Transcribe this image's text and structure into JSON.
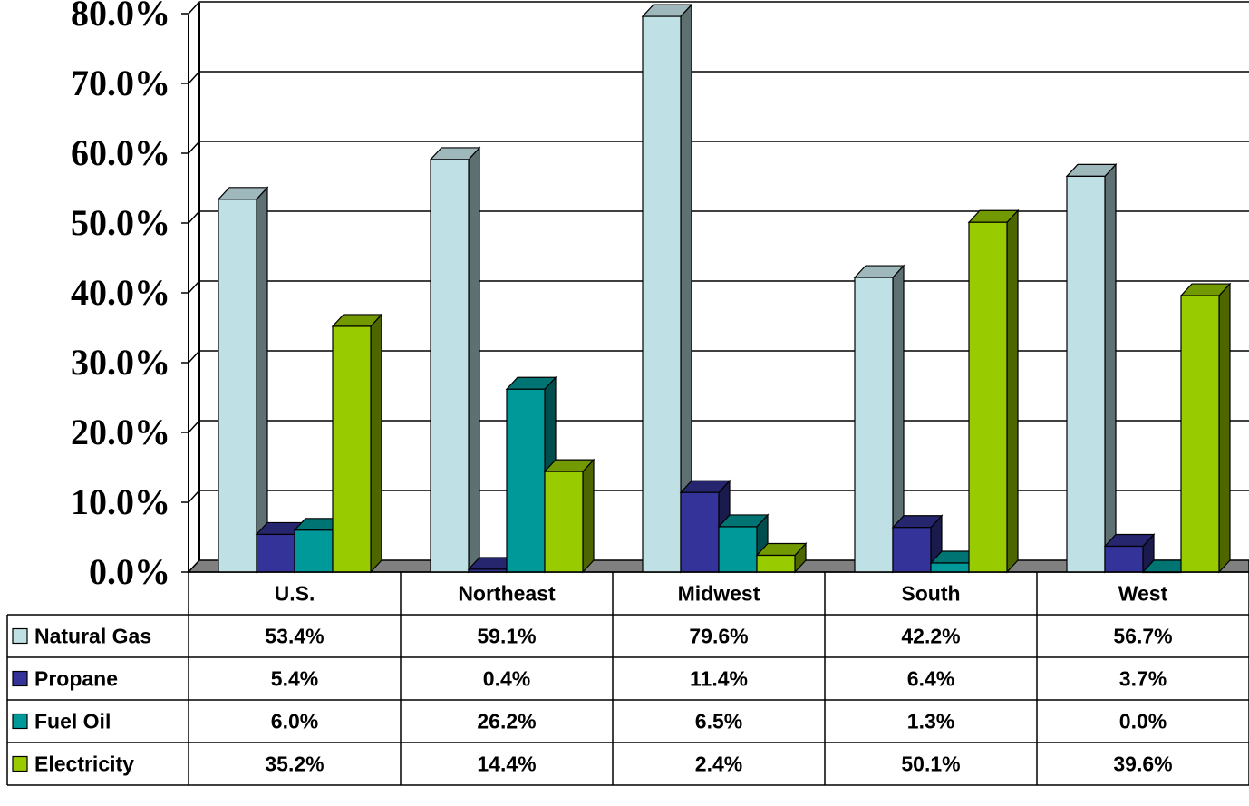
{
  "chart_data": {
    "type": "bar",
    "style": "3d-clustered-column-with-data-table",
    "title": "",
    "xlabel": "",
    "ylabel": "",
    "ylim": [
      0,
      80
    ],
    "y_ticks": [
      "0.0%",
      "10.0%",
      "20.0%",
      "30.0%",
      "40.0%",
      "50.0%",
      "60.0%",
      "70.0%",
      "80.0%"
    ],
    "grid": true,
    "legend": "in-table (left column)",
    "categories": [
      "U.S.",
      "Northeast",
      "Midwest",
      "South",
      "West"
    ],
    "series": [
      {
        "name": "Natural Gas",
        "values": [
          53.4,
          59.1,
          79.6,
          42.2,
          56.7
        ],
        "labels": [
          "53.4%",
          "59.1%",
          "79.6%",
          "42.2%",
          "56.7%"
        ],
        "color": "#bfe0e5",
        "side": "#5f7073",
        "top": "#9fb8bc"
      },
      {
        "name": "Propane",
        "values": [
          5.4,
          0.4,
          11.4,
          6.4,
          3.7
        ],
        "labels": [
          "5.4%",
          "0.4%",
          "11.4%",
          "6.4%",
          "3.7%"
        ],
        "color": "#333399",
        "side": "#1a1a4d",
        "top": "#26266f"
      },
      {
        "name": "Fuel Oil",
        "values": [
          6.0,
          26.2,
          6.5,
          1.3,
          0.0
        ],
        "labels": [
          "6.0%",
          "26.2%",
          "6.5%",
          "1.3%",
          "0.0%"
        ],
        "color": "#009999",
        "side": "#004d4d",
        "top": "#007373"
      },
      {
        "name": "Electricity",
        "values": [
          35.2,
          14.4,
          2.4,
          50.1,
          39.6
        ],
        "labels": [
          "35.2%",
          "14.4%",
          "2.4%",
          "50.1%",
          "39.6%"
        ],
        "color": "#99cc00",
        "side": "#4d6600",
        "top": "#739900"
      }
    ],
    "colors": {
      "grid": "#000000",
      "wall": "#ffffff",
      "floor": "#808080"
    }
  }
}
